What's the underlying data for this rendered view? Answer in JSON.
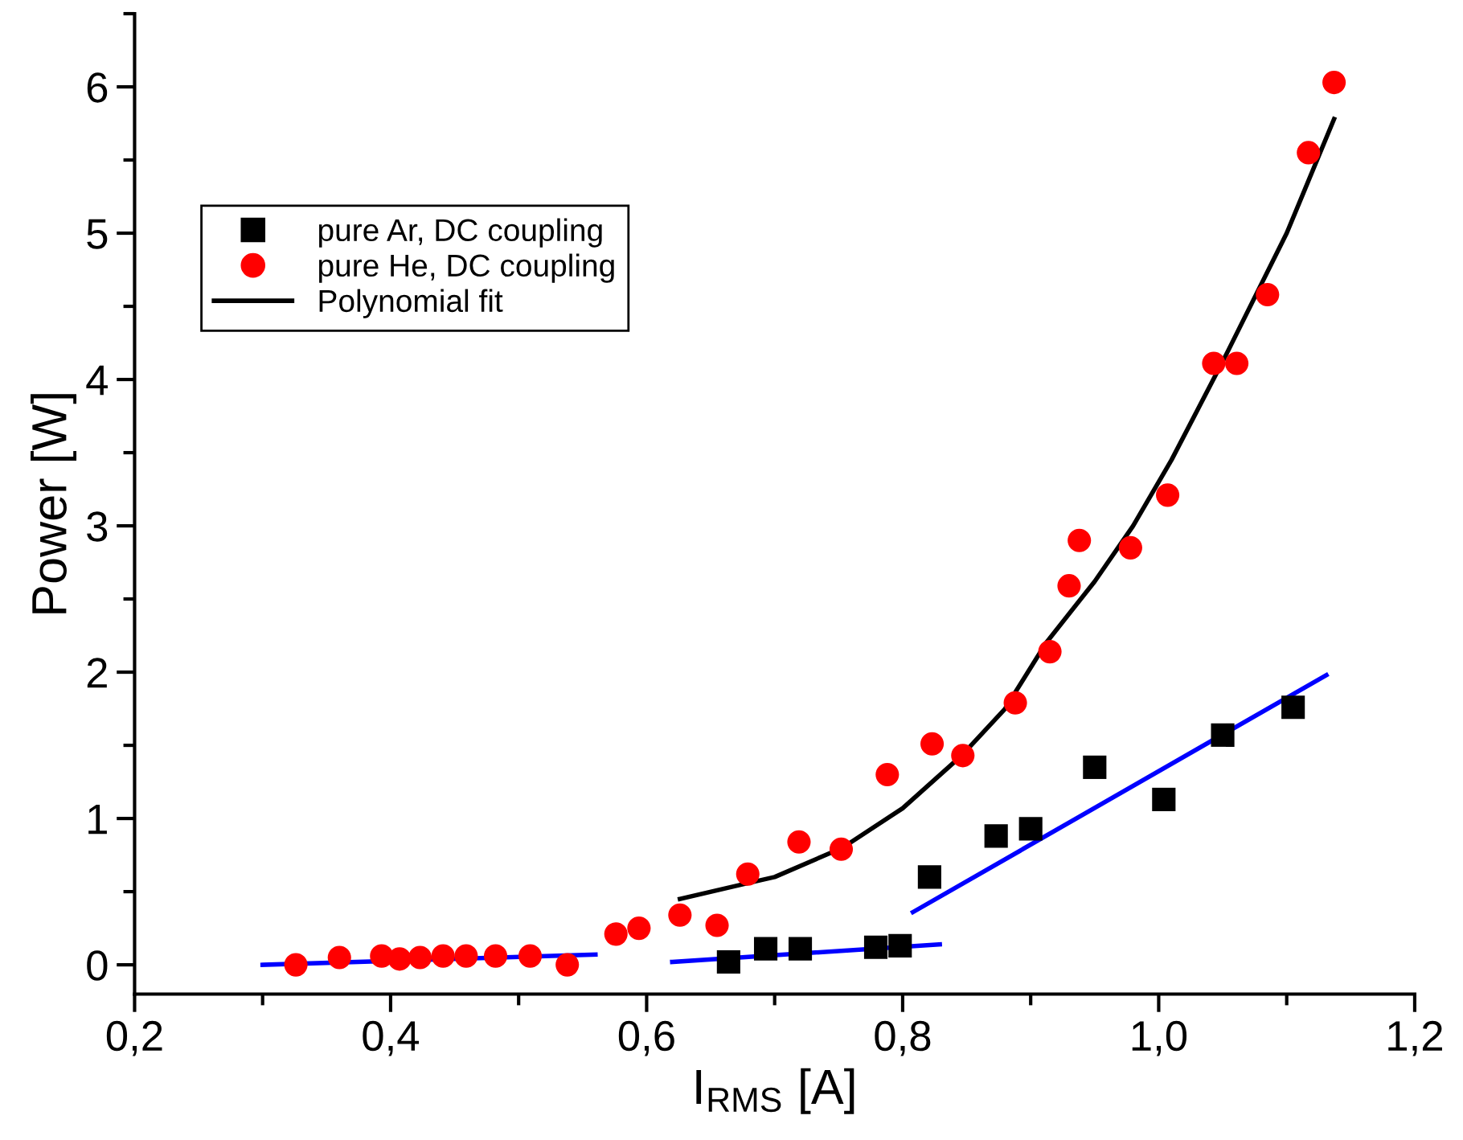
{
  "chart_data": {
    "type": "scatter",
    "xlabel": "I$_{RMS}$ [A]",
    "ylabel": "Power [W]",
    "xlim": [
      0.2,
      1.2
    ],
    "ylim": [
      -0.2,
      6.5
    ],
    "xticks": [
      {
        "value": 0.2,
        "label": "0,2"
      },
      {
        "value": 0.4,
        "label": "0,4"
      },
      {
        "value": 0.6,
        "label": "0,6"
      },
      {
        "value": 0.8,
        "label": "0,8"
      },
      {
        "value": 1.0,
        "label": "1,0"
      },
      {
        "value": 1.2,
        "label": "1,2"
      }
    ],
    "yticks": [
      0,
      1,
      2,
      3,
      4,
      5,
      6
    ],
    "grid": false,
    "legend": "top left",
    "series": [
      {
        "name": "pure Ar, DC coupling",
        "type": "scatter",
        "marker": "square",
        "color": "#000000",
        "x": [
          0.664,
          0.693,
          0.72,
          0.779,
          0.798,
          0.821,
          0.873,
          0.9,
          0.95,
          1.004,
          1.05,
          1.105
        ],
        "values": [
          0.02,
          0.11,
          0.11,
          0.12,
          0.13,
          0.6,
          0.88,
          0.93,
          1.35,
          1.13,
          1.57,
          1.76
        ]
      },
      {
        "name": "pure He, DC coupling",
        "marker": "circle",
        "color": "#ff0000",
        "x": [
          0.326,
          0.36,
          0.393,
          0.407,
          0.423,
          0.441,
          0.459,
          0.482,
          0.509,
          0.538,
          0.576,
          0.594,
          0.626,
          0.655,
          0.679,
          0.719,
          0.752,
          0.788,
          0.823,
          0.847,
          0.888,
          0.915,
          0.93,
          0.938,
          0.978,
          1.007,
          1.043,
          1.061,
          1.085,
          1.117,
          1.137
        ],
        "values": [
          0.0,
          0.05,
          0.06,
          0.04,
          0.05,
          0.06,
          0.06,
          0.06,
          0.06,
          0.0,
          0.21,
          0.25,
          0.34,
          0.27,
          0.62,
          0.84,
          0.79,
          1.3,
          1.51,
          1.43,
          1.79,
          2.14,
          2.59,
          2.9,
          2.85,
          3.21,
          4.11,
          4.11,
          4.58,
          5.55,
          6.03
        ]
      },
      {
        "name": "Polynomial fit",
        "type": "line",
        "color": "#000000",
        "x": [
          0.626,
          0.68,
          0.7,
          0.753,
          0.8,
          0.846,
          0.88,
          0.912,
          0.95,
          0.98,
          1.01,
          1.051,
          1.1,
          1.137
        ],
        "values": [
          0.45,
          0.56,
          0.6,
          0.8,
          1.07,
          1.43,
          1.75,
          2.2,
          2.62,
          3.0,
          3.45,
          4.14,
          5.0,
          5.78
        ]
      },
      {
        "type": "line",
        "color": "#0000ff",
        "x": [
          0.3,
          0.56
        ],
        "values": [
          0.0,
          0.07
        ]
      },
      {
        "type": "line",
        "color": "#0000ff",
        "x": [
          0.62,
          0.829
        ],
        "values": [
          0.02,
          0.14
        ]
      },
      {
        "type": "line",
        "color": "#0000ff",
        "x": [
          0.808,
          1.131
        ],
        "values": [
          0.36,
          1.98
        ]
      }
    ]
  }
}
